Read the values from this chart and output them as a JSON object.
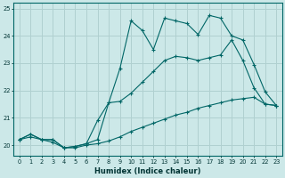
{
  "title": "",
  "xlabel": "Humidex (Indice chaleur)",
  "ylabel": "",
  "bg_color": "#cce8e8",
  "line_color": "#006666",
  "grid_color": "#b0d0d0",
  "xlim": [
    -0.5,
    23.5
  ],
  "ylim": [
    19.6,
    25.2
  ],
  "yticks": [
    20,
    21,
    22,
    23,
    24,
    25
  ],
  "xticks": [
    0,
    1,
    2,
    3,
    4,
    5,
    6,
    7,
    8,
    9,
    10,
    11,
    12,
    13,
    14,
    15,
    16,
    17,
    18,
    19,
    20,
    21,
    22,
    23
  ],
  "line1_x": [
    0,
    1,
    2,
    3,
    4,
    5,
    6,
    7,
    8,
    9,
    10,
    11,
    12,
    13,
    14,
    15,
    16,
    17,
    18,
    19,
    20,
    21,
    22,
    23
  ],
  "line1_y": [
    20.2,
    20.3,
    20.2,
    20.1,
    19.9,
    19.9,
    20.0,
    20.05,
    20.15,
    20.3,
    20.5,
    20.65,
    20.8,
    20.95,
    21.1,
    21.2,
    21.35,
    21.45,
    21.55,
    21.65,
    21.7,
    21.75,
    21.5,
    21.45
  ],
  "line2_x": [
    0,
    1,
    2,
    3,
    4,
    5,
    6,
    7,
    8,
    9,
    10,
    11,
    12,
    13,
    14,
    15,
    16,
    17,
    18,
    19,
    20,
    21,
    22,
    23
  ],
  "line2_y": [
    20.2,
    20.4,
    20.2,
    20.2,
    19.9,
    19.95,
    20.05,
    20.9,
    21.55,
    21.6,
    21.9,
    22.3,
    22.7,
    23.1,
    23.25,
    23.2,
    23.1,
    23.2,
    23.3,
    23.85,
    23.1,
    22.1,
    21.5,
    21.45
  ],
  "line3_x": [
    0,
    1,
    2,
    3,
    4,
    5,
    6,
    7,
    8,
    9,
    10,
    11,
    12,
    13,
    14,
    15,
    16,
    17,
    18,
    19,
    20,
    21,
    22,
    23
  ],
  "line3_y": [
    20.2,
    20.4,
    20.2,
    20.2,
    19.9,
    19.95,
    20.05,
    20.2,
    21.55,
    22.8,
    24.55,
    24.2,
    23.5,
    24.65,
    24.55,
    24.45,
    24.05,
    24.75,
    24.65,
    24.0,
    23.85,
    22.95,
    21.95,
    21.45
  ]
}
